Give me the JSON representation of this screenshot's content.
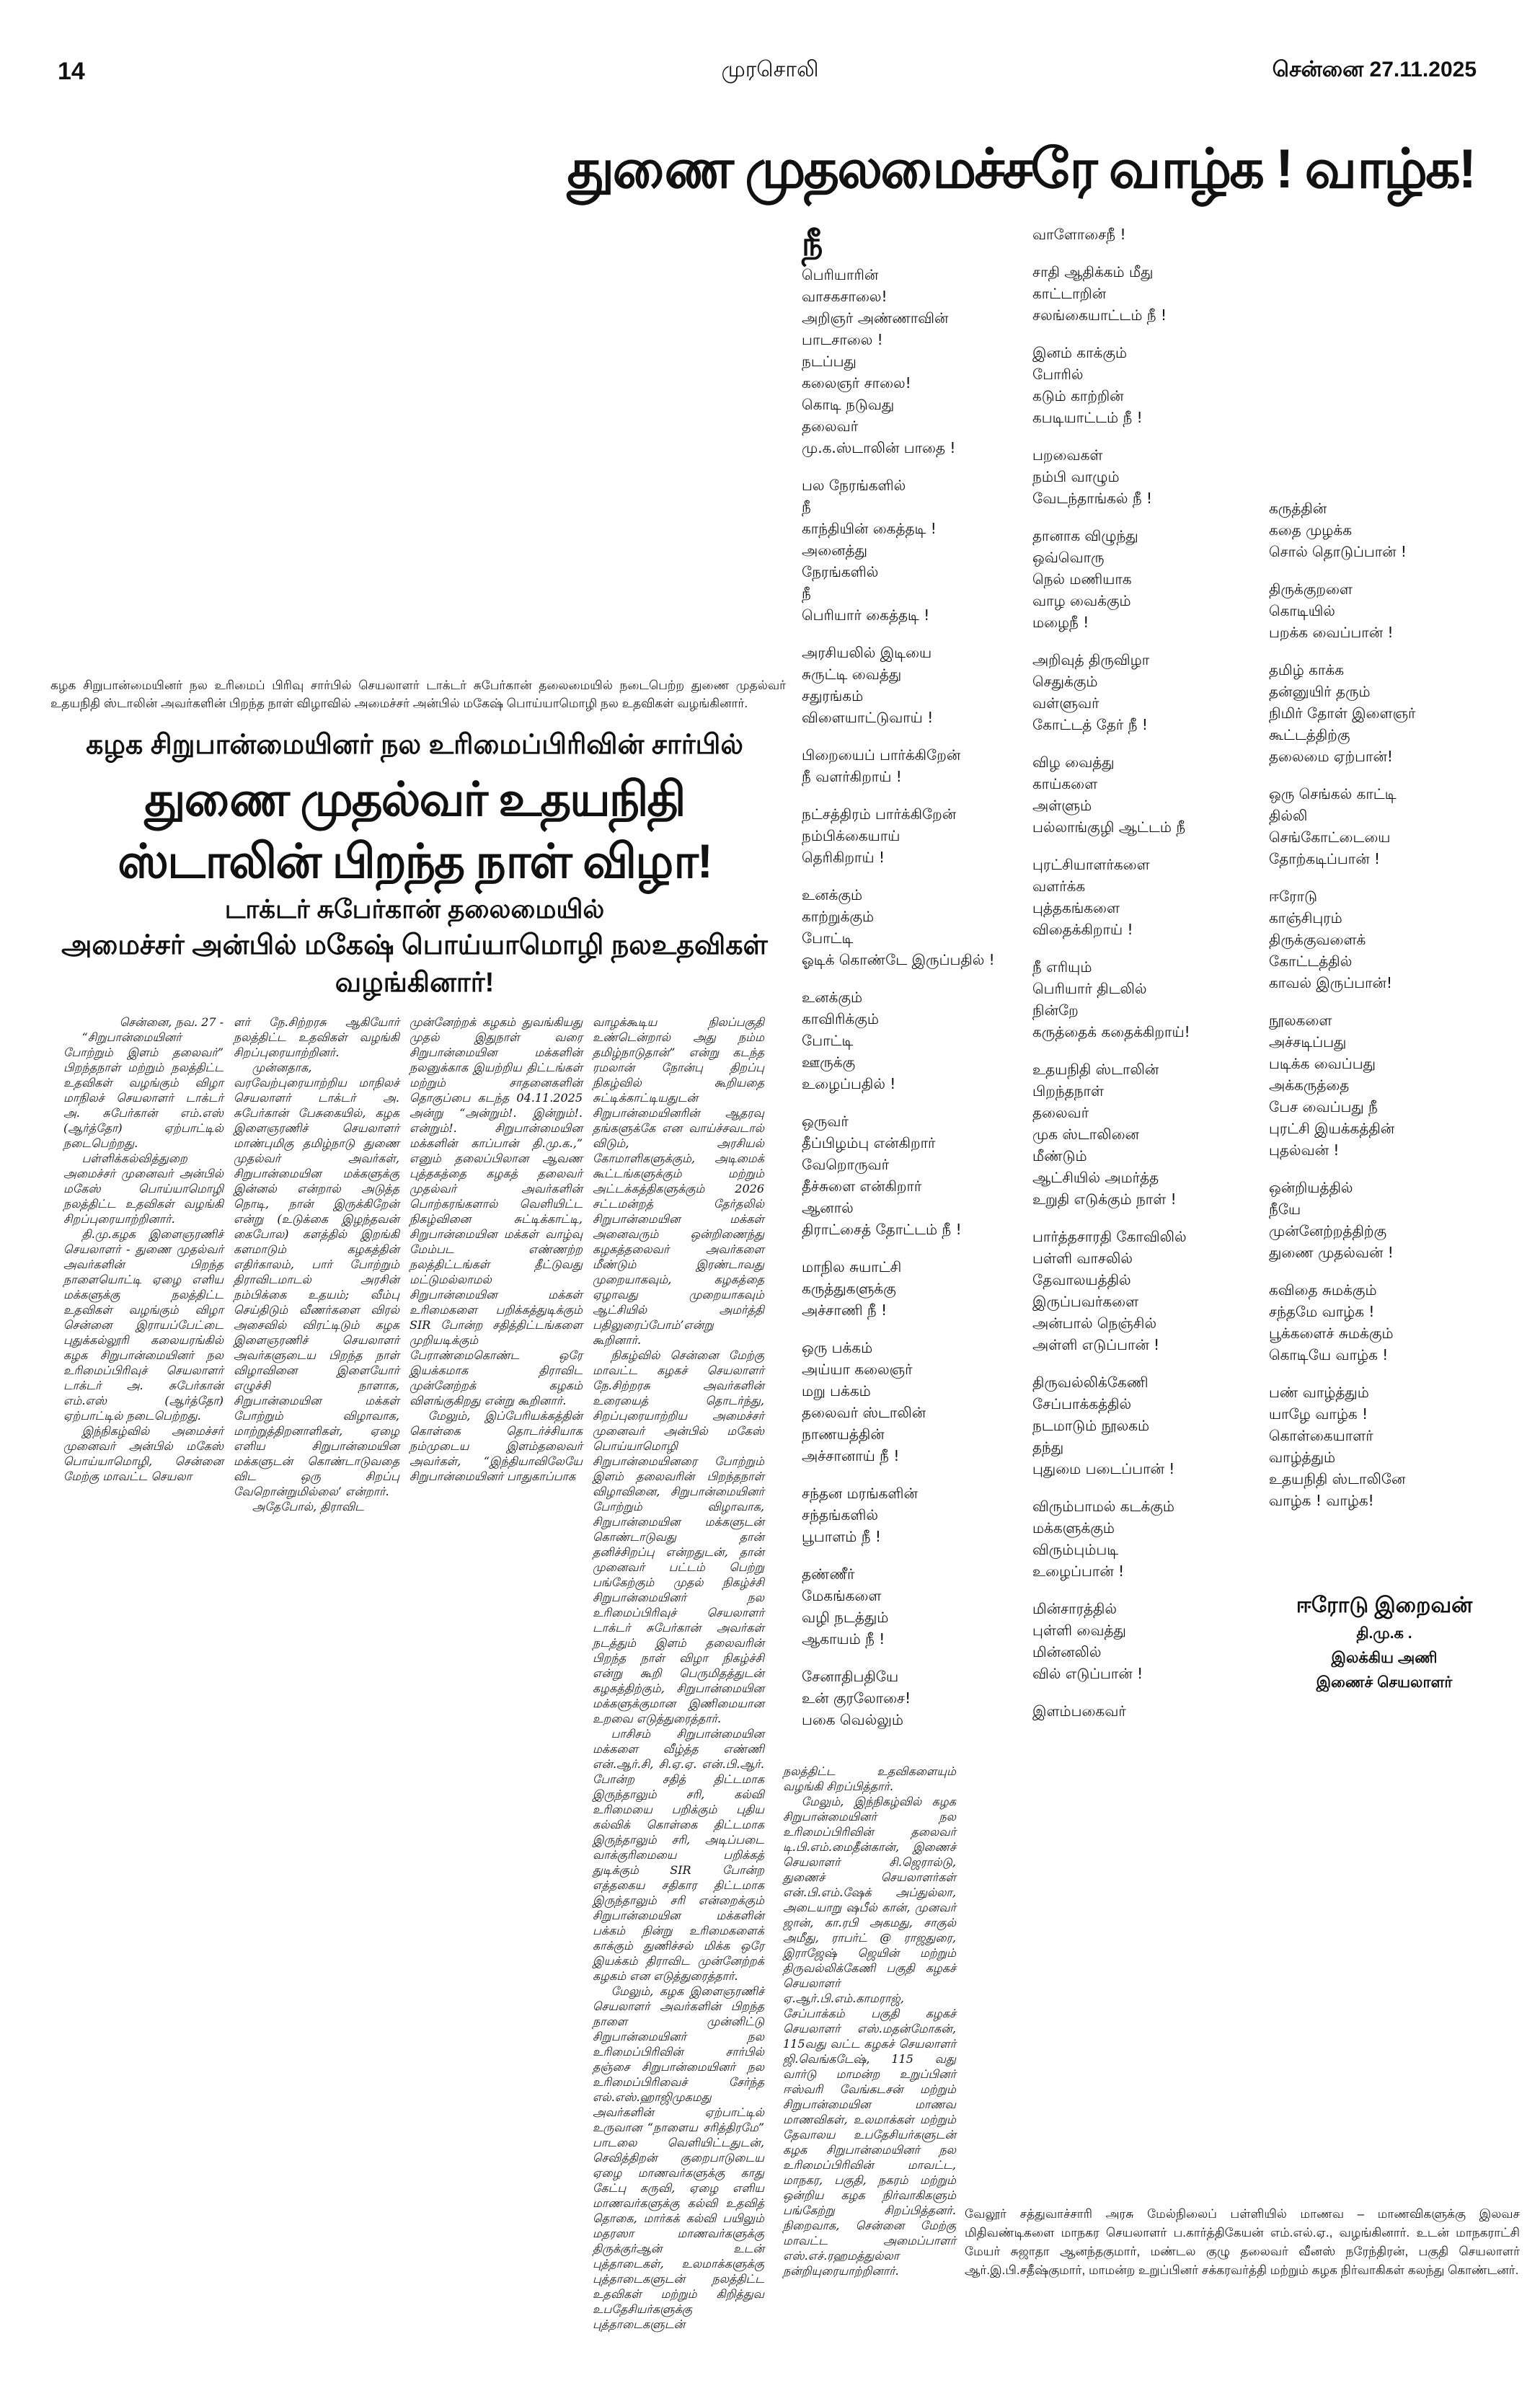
{
  "header": {
    "page_number": "14",
    "masthead": "முரசொலி",
    "dateline": "சென்னை 27.11.2025"
  },
  "poem": {
    "title": "துணை முதலமைச்சரே வாழ்க ! வாழ்க!",
    "columns": [
      [
        [
          "நீ",
          "பெரியாரின்",
          "வாசகசாலை!",
          "அறிஞர் அண்ணாவின்",
          "பாடசாலை !",
          "நடப்பது",
          "கலைஞர் சாலை!",
          "கொடி நடுவது",
          "தலைவர்",
          "மு.க.ஸ்டாலின் பாதை !"
        ],
        [
          "பல நேரங்களில்",
          "நீ",
          "காந்தியின் கைத்தடி !",
          "அனைத்து",
          "நேரங்களில்",
          "நீ",
          "பெரியார் கைத்தடி !"
        ],
        [
          "அரசியலில் இடியை",
          "சுருட்டி வைத்து",
          "சதுரங்கம்",
          "விளையாட்டுவாய் !"
        ],
        [
          "பிறையைப் பார்க்கிறேன்",
          "நீ வளர்கிறாய் !"
        ],
        [
          "நட்சத்திரம் பார்க்கிறேன்",
          "நம்பிக்கையாய்",
          "தெரிகிறாய் !"
        ],
        [
          "உனக்கும்",
          "காற்றுக்கும்",
          "போட்டி",
          "ஓடிக் கொண்டே இருப்பதில் !"
        ],
        [
          "உனக்கும்",
          "காவிரிக்கும்",
          "போட்டி",
          "ஊருக்கு",
          "உழைப்பதில் !"
        ],
        [
          "ஒருவர்",
          "தீப்பிழம்பு என்கிறார்",
          "வேறொருவர்",
          "தீச்சுளை என்கிறார்",
          "ஆனால்",
          "திராட்சைத் தோட்டம் நீ !"
        ],
        [
          "மாநில சுயாட்சி",
          "கருத்துகளுக்கு",
          "அச்சாணி நீ !"
        ],
        [
          "ஒரு பக்கம்",
          "அய்யா கலைஞர்",
          "மறு பக்கம்",
          "தலைவர் ஸ்டாலின்",
          "நாணயத்தின்",
          "அச்சானாய் நீ !"
        ],
        [
          "சந்தன மரங்களின்",
          "சந்தங்களில்",
          "பூபாளம் நீ !"
        ],
        [
          "தண்ணீர்",
          "மேகங்களை",
          "வழி நடத்தும்",
          "ஆகாயம் நீ !"
        ],
        [
          "சேனாதிபதியே",
          "உன் குரலோசை!",
          "பகை வெல்லும்"
        ]
      ],
      [
        [
          "வாளோசைநீ !"
        ],
        [
          "சாதி ஆதிக்கம் மீது",
          "காட்டாறின்",
          "சலங்கையாட்டம் நீ !"
        ],
        [
          "இனம் காக்கும்",
          "போரில்",
          "கடும் காற்றின்",
          "கபடியாட்டம் நீ !"
        ],
        [
          "பறவைகள்",
          "நம்பி வாழும்",
          "வேடந்தாங்கல் நீ !"
        ],
        [
          "தானாக விழுந்து",
          "ஒவ்வொரு",
          "நெல் மணியாக",
          "வாழ வைக்கும்",
          "மழைநீ !"
        ],
        [
          "அறிவுத் திருவிழா",
          "செதுக்கும்",
          "வள்ளுவர்",
          "கோட்டத் தேர் நீ !"
        ],
        [
          "விழ வைத்து",
          "காய்களை",
          "அள்ளும்",
          "பல்லாங்குழி ஆட்டம் நீ"
        ],
        [
          "புரட்சியாளர்களை",
          "வளர்க்க",
          "புத்தகங்களை",
          "விதைக்கிறாய் !"
        ],
        [
          "நீ எரியும்",
          "பெரியார் திடலில்",
          "நின்றே",
          "கருத்தைக் கதைக்கிறாய்!"
        ],
        [
          "உதயநிதி ஸ்டாலின்",
          "பிறந்தநாள்",
          "தலைவர்",
          "முக ஸ்டாலினை",
          "மீண்டும்",
          "ஆட்சியில் அமர்த்த",
          "உறுதி எடுக்கும் நாள் !"
        ],
        [
          "பார்த்தசாரதி கோவிலில்",
          "பள்ளி வாசலில்",
          "தேவாலயத்தில்",
          "இருப்பவர்களை",
          "அன்பால் நெஞ்சில்",
          "அள்ளி எடுப்பான் !"
        ],
        [
          "திருவல்லிக்கேணி",
          "சேப்பாக்கத்தில்",
          "நடமாடும் நூலகம்",
          "தந்து",
          "புதுமை படைப்பான் !"
        ],
        [
          "விரும்பாமல் கடக்கும்",
          "மக்களுக்கும்",
          "விரும்பும்படி",
          "உழைப்பான் !"
        ],
        [
          "மின்சாரத்தில்",
          "புள்ளி வைத்து",
          "மின்னலில்",
          "வில் எடுப்பான் !"
        ],
        [
          "இளம்பகைவர்"
        ]
      ],
      [
        [
          "கருத்தின்",
          "கதை முழக்க",
          "சொல் தொடுப்பான் !"
        ],
        [
          "திருக்குறளை",
          "கொடியில்",
          "பறக்க வைப்பான் !"
        ],
        [
          "தமிழ் காக்க",
          "தன்னுயிர் தரும்",
          "நிமிர் தோள் இளைஞர்",
          "கூட்டத்திற்கு",
          "தலைமை ஏற்பான்!"
        ],
        [
          "ஒரு செங்கல் காட்டி",
          "தில்லி",
          "செங்கோட்டையை",
          "தோற்கடிப்பான் !"
        ],
        [
          "ஈரோடு",
          "காஞ்சிபுரம்",
          "திருக்குவளைக்",
          "கோட்டத்தில்",
          "காவல் இருப்பான்!"
        ],
        [
          "நூலகளை",
          "அச்சடிப்பது",
          "படிக்க வைப்பது",
          "அக்கருத்தை",
          "பேச வைப்பது நீ",
          "புரட்சி இயக்கத்தின்",
          "புதல்வன் !"
        ],
        [
          "ஒன்றியத்தில்",
          "நீயே",
          "முன்னேற்றத்திற்கு",
          "துணை முதல்வன் !"
        ],
        [
          "கவிதை சுமக்கும்",
          "சந்தமே வாழ்க !",
          "பூக்களைச் சுமக்கும்",
          "கொடியே வாழ்க !"
        ],
        [
          "பண் வாழ்த்தும்",
          "யாழே வாழ்க !",
          "கொள்கையாளர்",
          "வாழ்த்தும்",
          "உதயநிதி ஸ்டாலினே",
          "வாழ்க ! வாழ்க!"
        ]
      ]
    ],
    "author": {
      "name": "ஈரோடு இறைவன்",
      "party": "தி.மு.க .",
      "wing": "இலக்கிய அணி",
      "role": "இணைச் செயலாளர்"
    }
  },
  "article": {
    "photo_caption": "கழக சிறுபான்மையினர் நல உரிமைப் பிரிவு சார்பில் செயலாளர் டாக்டர் சுபேர்கான் தலைமையில் நடைபெற்ற துணை முதல்வர் உதயநிதி ஸ்டாலின் அவர்களின் பிறந்த நாள் விழாவில் அமைச்சர் அன்பில் மகேஷ் பொய்யாமொழி நல உதவிகள் வழங்கினார்.",
    "kicker": "கழக சிறுபான்மையினர் நல உரிமைப்பிரிவின் சார்பில்",
    "headline": "துணை முதல்வர் உதயநிதி ஸ்டாலின் பிறந்த நாள் விழா!",
    "subhead_1": "டாக்டர் சுபேர்கான் தலைமையில்",
    "subhead_2": "அமைச்சர் அன்பில் மகேஷ் பொய்யாமொழி நலஉதவிகள் வழங்கினார்!",
    "dateline": "சென்னை, நவ. 27 -",
    "columns": [
      [
        "“சிறுபான்மையினர் போற்றும் இளம் தலைவர்” பிறந்தநாள் மற்றும் நலத்திட்ட உதவிகள் வழங்கும் விழா மாநிலச் செயலாளர் டாக்டர் அ. சுபேர்கான் எம்.எஸ் (ஆர்த்தோ) ஏற்பாட்டில் நடைபெற்றது.",
        "பள்ளிக்கல்வித்துறை அமைச்சர் முனைவர் அன்பில் மகேஸ் பொய்யாமொழி நலத்திட்ட உதவிகள் வழங்கி சிறப்புரையாற்றினார்.",
        "தி.மு.கழக இளைஞரணிச் செயலாளர் - துணை முதல்வர் அவர்களின் பிறந்த நாளையொட்டி ஏழை எளிய மக்களுக்கு நலத்திட்ட உதவிகள் வழங்கும் விழா சென்னை இராயப்பேட்டை புதுக்கல்லூரி கலையரங்கில் கழக சிறுபான்மையினர் நல உரிமைப்பிரிவுச் செயலாளர் டாக்டர் அ. சுபேர்கான் எம்.எஸ் (ஆர்த்தோ) ஏற்பாட்டில் நடைபெற்றது.",
        "இந்நிகழ்வில் அமைச்சர் முனைவர் அன்பில் மகேஸ் பொய்யாமொழி, சென்னை மேற்கு மாவட்ட செயலா"
      ],
      [
        "ளர் நே.சிற்றரசு ஆகியோர் நலத்திட்ட உதவிகள் வழங்கி சிறப்புரையாற்றினர்.",
        "முன்னதாக, வரவேற்புரையாற்றிய மாநிலச் செயலாளர் டாக்டர் அ. சுபேர்கான் பேசுகையில், கழக இளைஞரணிச் செயலாளர் மாண்புமிகு தமிழ்நாடு துணை முதல்வர் அவர்கள், சிறுபான்மையின மக்களுக்கு இன்னல் என்றால் அடுத்த நொடி, நான் இருக்கிறேன் என்று (உடுக்கை இழந்தவன் கைபோல) களத்தில் இறங்கி களமாடும் கழகத்தின் எதிர்காலம், பார் போற்றும் திராவிடமாடல் அரசின் நம்பிக்கை உதயம்; வீம்பு செய்திடும் வீணர்களை விரல் அசைவில் விரட்டிடும் கழக இளைஞரணிச் செயலாளர் அவர்களுடைய பிறந்த நாள் விழாவினை இளையோர் எழுச்சி நாளாக, சிறுபான்மையின மக்கள் போற்றும் விழாவாக, மாற்றுத்திறனாளிகள், ஏழை எளிய சிறுபான்மையின மக்களுடன் கொண்டாடுவதை விட ஒரு சிறப்பு வேறொன்றுமில்லை’ என்றார்.",
        "அதேபோல், திராவிட"
      ],
      [
        "முன்னேற்றக் கழகம் துவங்கியது முதல் இதுநாள் வரை சிறுபான்மையின மக்களின் நலனுக்காக இயற்றிய திட்டங்கள் மற்றும் சாதனைகளின் தொகுப்பை கடந்த 04.11.2025 அன்று “அன்றும்!. இன்றும்!. என்றும்!. சிறுபான்மையின மக்களின் காப்பான் தி.மு.க.,” எனும் தலைப்பிலான ஆவண புத்தகத்தை கழகத் தலைவர் முதல்வர் அவர்களின் பொற்கரங்களால் வெளியிட்ட நிகழ்வினை சுட்டிக்காட்டி, சிறுபான்மையின மக்கள் வாழ்வு மேம்பட எண்ணற்ற நலத்திட்டங்கள் தீட்டுவது மட்டுமல்லாமல் சிறுபான்மையின மக்கள் உரிமைகளை பறிக்கத்துடிக்கும் SIR போன்ற சதித்திட்டங்களை முறியடிக்கும் பேராண்மைகொண்ட ஒரே இயக்கமாக திராவிட முன்னேற்றக் கழகம் விளங்குகிறது என்று கூறினார்.",
        "மேலும், இப்பேரியக்கத்தின் கொள்கை தொடர்ச்சியாக நம்முடைய இளம்தலைவர் அவர்கள், “இந்தியாவிலேயே சிறுபான்மையினர் பாதுகாப்பாக"
      ],
      [
        "வாழக்கூடிய நிலப்பகுதி உண்டென்றால் அது நம்ம தமிழ்நாடுதான்” என்று கடந்த ரமலான் நோன்பு திறப்பு நிகழ்வில் கூறியதை சுட்டிக்காட்டியதுடன் சிறுபான்மையினரின் ஆதரவு தங்களுக்கே என வாய்ச்சவடால் விடும், அரசியல் கோமாளிகளுக்கும், அடிமைக் கூட்டங்களுக்கும் மற்றும் அட்டக்கத்திகளுக்கும் 2026 சட்டமன்றத் தேர்தலில் சிறுபான்மையின மக்கள் அனைவரும் ஒன்றிணைந்து கழகத்தலைவர் அவர்களை மீண்டும் இரண்டாவது முறையாகவும், கழகத்தை ஏழாவது முறையாகவும் ஆட்சியில் அமர்த்தி பதிலுரைப்போம்’என்று கூறினார்.",
        "நிகழ்வில் சென்னை மேற்கு மாவட்ட கழகச் செயலாளர் நே.சிற்றரசு அவர்களின் உரையைத் தொடர்ந்து, சிறப்புரையாற்றிய அமைச்சர் முனைவர் அன்பில் மகேஸ் பொய்யாமொழி சிறுபான்மையினரை போற்றும் இளம் தலைவரின் பிறந்தநாள் விழாவினை, சிறுபான்மையினர் போற்றும் விழாவாக, சிறுபான்மையின மக்களுடன் கொண்டாடுவது தான் தனிச்சிறப்பு என்றதுடன், தான் முனைவர் பட்டம் பெற்று பங்கேற்கும் முதல் நிகழ்ச்சி சிறுபான்மையினர் நல உரிமைப்பிரிவுச் செயலாளர் டாக்டர் சுபேர்கான் அவர்கள் நடத்தும் இளம் தலைவரின் பிறந்த நாள் விழா நிகழ்ச்சி என்று கூறி பெருமிதத்துடன் கழகத்திற்கும், சிறுபான்மையின மக்களுக்குமான இணிமையான உறவை எடுத்துரைத்தார்.",
        "பாசிசம் சிறுபான்மையின மக்களை வீழ்த்த எண்ணி என்.ஆர்.சி, சி.ஏ.ஏ. என்.பி.ஆர். போன்ற சதித் திட்டமாக இருந்தாலும் சரி, கல்வி உரிமையை பறிக்கும் புதிய கல்விக் கொள்கை திட்டமாக இருந்தாலும் சரி, அடிப்படை வாக்குரிமையை பறிக்கத் துடிக்கும் SIR போன்ற எத்தகைய சதிகார திட்டமாக இருந்தாலும் சரி என்றைக்கும் சிறுபான்மையின மக்களின் பக்கம் நின்று உரிமைகளைக் காக்கும் துணிச்சல் மிக்க ஒரே இயக்கம் திராவிட முன்னேற்றக் கழகம் என எடுத்துரைத்தார்.",
        "மேலும், கழக இளைஞரணிச் செயலாளர் அவர்களின் பிறந்த நாளை முன்னிட்டு சிறுபான்மையினர் நல உரிமைப்பிரிவின் சார்பில் தஞ்சை சிறுபான்மையினர் நல உரிமைப்பிரிவைச் சேர்ந்த எல்.எஸ்.ஹாஜிமுகமது அவர்களின் ஏற்பாட்டில் உருவான “நாளைய சரித்திரமே” பாடலை வெளியிட்டதுடன், செவித்திறன் குறைபாடுடைய ஏழை மாணவர்களுக்கு காது கேட்பு கருவி, ஏழை எளிய மாணவர்களுக்கு கல்வி உதவித் தொகை, மார்கக் கல்வி பயிலும் மதரஸா மாணவர்களுக்கு திருக்குர்ஆன் உடன் புத்தாடைகள், உலமாக்களுக்கு புத்தாடைகளுடன் நலத்திட்ட உதவிகள் மற்றும் கிறித்துவ உபதேசியர்களுக்கு புத்தாடைகளுடன்"
      ],
      [
        "நலத்திட்ட உதவிகளையும் வழங்கி சிறப்பித்தார்.",
        "மேலும், இந்நிகழ்வில் கழக சிறுபான்மையினர் நல உரிமைப்பிரிவின் தலைவர் டி.பி.எம்.மைதீன்கான், இணைச் செயலாளர் சி.ஜெரால்டு, துணைச் செயலாளர்கள் என்.பி.எம்.ஷேக் அப்துல்லா, அடையாறு ஷபீல் கான், முனவர் ஜான், கா.ரபி அகமது, சாகுல் அமீது, ராபர்ட் @ ராஜதுரை, இராஜேஷ் ஜெயின் மற்றும் திருவல்லிக்கேணி பகுதி கழகச் செயலாளர் ஏ.ஆர்.பி.எம்.காமராஜ், சேப்பாக்கம் பகுதி கழகச் செயலாளர் எஸ்.மதன்மோகன், 115வது வட்ட கழகச் செயலாளர் ஜி.வெங்கடேஷ், 115 வது வார்டு மாமன்ற உறுப்பினர் ஈஸ்வரி வேங்கடசன் மற்றும் சிறுபான்மையின மாணவ மாணவிகள், உலமாக்கள் மற்றும் தேவாலய உபதேசியர்களுடன் கழக சிறுபான்மையினர் நல உரிமைப்பிரிவின் மாவட்ட, மாநகர, பகுதி, நகரம் மற்றும் ஒன்றிய கழக நிர்வாகிகளும் பங்கேற்று சிறப்பித்தனர். நிறைவாக, சென்னை மேற்கு மாவட்ட அமைப்பாளர் எஸ்.எச்.ரஹமத்துல்லா நன்றியுரையாற்றினார்."
      ]
    ]
  },
  "vellore_caption": "வேலூர் சத்துவாச்சாரி அரசு மேல்நிலைப் பள்ளியில் மாணவ – மாணவிகளுக்கு இலவச மிதிவண்டிகளை மாநகர செயலாளர் ப.கார்த்திகேயன் எம்.எல்.ஏ., வழங்கினார். உடன் மாநகராட்சி மேயர் சுஜாதா ஆனந்தகுமார், மண்டல குழு தலைவர் வீனஸ் நரேந்திரன், பகுதி செயலாளர் ஆர்.இ.பி.சதீஷ்குமார், மாமன்ற உறுப்பினர் சக்கரவர்த்தி மற்றும் கழக நிர்வாகிகள் கலந்து கொண்டனர்."
}
